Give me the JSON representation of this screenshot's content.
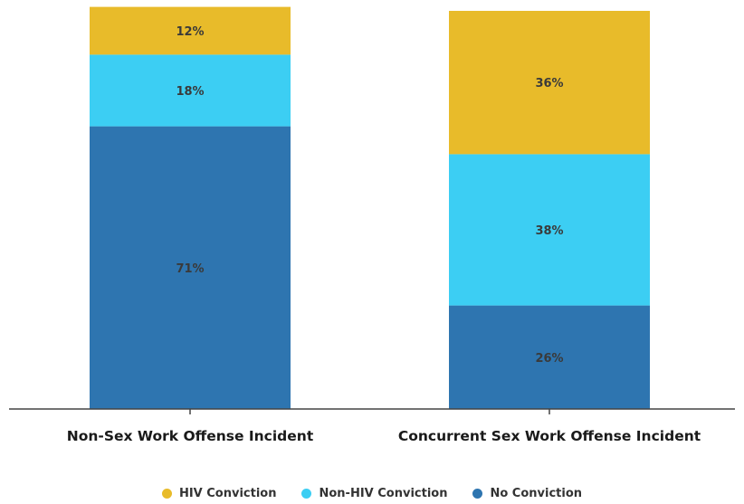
{
  "chart_data": {
    "type": "bar",
    "stacked": true,
    "categories": [
      "Non-Sex Work Offense Incident",
      "Concurrent Sex Work Offense Incident"
    ],
    "series": [
      {
        "name": "No Conviction",
        "values": [
          71,
          26
        ],
        "labels": [
          "71%",
          "26%"
        ],
        "color": "#2e75b0"
      },
      {
        "name": "Non-HIV Conviction",
        "values": [
          18,
          38
        ],
        "labels": [
          "18%",
          "38%"
        ],
        "color": "#3ccef3"
      },
      {
        "name": "HIV Conviction",
        "values": [
          12,
          36
        ],
        "labels": [
          "12%",
          "36%"
        ],
        "color": "#e8bb2a"
      }
    ],
    "ylim": [
      0,
      100
    ],
    "grid": false,
    "legend_position": "bottom",
    "legend": [
      {
        "label": "HIV Conviction",
        "color": "#e8bb2a"
      },
      {
        "label": "Non-HIV Conviction",
        "color": "#3ccef3"
      },
      {
        "label": "No Conviction",
        "color": "#2e75b0"
      }
    ]
  }
}
